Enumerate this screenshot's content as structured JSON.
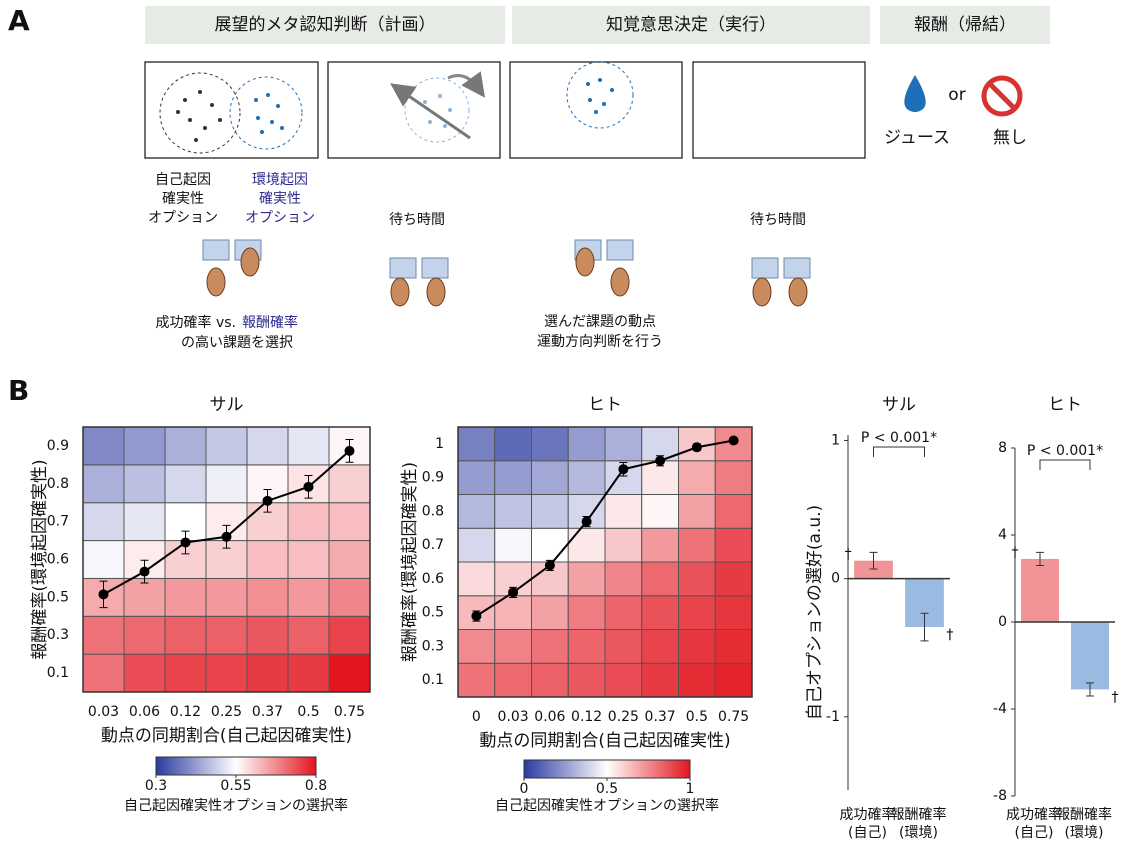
{
  "panel_a": {
    "label": "A",
    "headers": [
      "展望的メタ認知判断（計画）",
      "知覚意思決定（実行）",
      "報酬（帰結）"
    ],
    "self_option": [
      "自己起因",
      "確実性",
      "オプション"
    ],
    "env_option": [
      "環境起因",
      "確実性",
      "オプション"
    ],
    "wait": [
      "待ち時間",
      "待ち時間"
    ],
    "choose": [
      "成功確率 vs.",
      "報酬確率",
      "の高い課題を選択"
    ],
    "execute": [
      "選んだ課題の動点",
      "運動方向判断を行う"
    ],
    "juice": "ジュース",
    "or": "or",
    "none": "無し"
  },
  "panel_b_label": "B",
  "chart_data": [
    {
      "type": "heatmap",
      "title": "サル",
      "x_label": "動点の同期割合(自己起因確実性)",
      "y_label": "報酬確率(環境起因確実性)",
      "x_categories": [
        "0.03",
        "0.06",
        "0.12",
        "0.25",
        "0.37",
        "0.5",
        "0.75"
      ],
      "y_categories": [
        "0.1",
        "0.3",
        "0.5",
        "0.6",
        "0.7",
        "0.8",
        "0.9"
      ],
      "z": [
        [
          0.7,
          0.74,
          0.75,
          0.75,
          0.76,
          0.76,
          0.8
        ],
        [
          0.7,
          0.71,
          0.72,
          0.72,
          0.73,
          0.72,
          0.75
        ],
        [
          0.64,
          0.65,
          0.66,
          0.66,
          0.67,
          0.66,
          0.68
        ],
        [
          0.54,
          0.57,
          0.6,
          0.6,
          0.62,
          0.62,
          0.64
        ],
        [
          0.5,
          0.52,
          0.55,
          0.57,
          0.6,
          0.62,
          0.62
        ],
        [
          0.45,
          0.47,
          0.5,
          0.53,
          0.56,
          0.58,
          0.6
        ],
        [
          0.4,
          0.42,
          0.45,
          0.48,
          0.5,
          0.52,
          0.56
        ]
      ],
      "zlim": [
        0.3,
        0.8
      ],
      "colors": [
        "#2b3aa0",
        "#ffffff",
        "#e3151f"
      ],
      "colorbar_ticks": [
        0.3,
        0.55,
        0.8
      ],
      "colorbar_label": "自己起因確実性オプションの選択率",
      "line": {
        "values": [
          2.08,
          2.68,
          3.45,
          3.6,
          4.55,
          4.92,
          5.87
        ],
        "errors": [
          0.35,
          0.3,
          0.3,
          0.3,
          0.3,
          0.3,
          0.3
        ],
        "color": "#000000"
      }
    },
    {
      "type": "heatmap",
      "title": "ヒト",
      "x_label": "動点の同期割合(自己起因確実性)",
      "y_label": "報酬確率(環境起因確実性)",
      "x_categories": [
        "0",
        "0.03",
        "0.06",
        "0.12",
        "0.25",
        "0.37",
        "0.5",
        "0.75"
      ],
      "y_categories": [
        "0.1",
        "0.3",
        "0.5",
        "0.6",
        "0.7",
        "0.8",
        "0.9",
        "1"
      ],
      "z": [
        [
          0.8,
          0.82,
          0.84,
          0.86,
          0.88,
          0.92,
          0.95,
          0.97
        ],
        [
          0.75,
          0.77,
          0.8,
          0.83,
          0.86,
          0.9,
          0.93,
          0.95
        ],
        [
          0.65,
          0.66,
          0.7,
          0.78,
          0.83,
          0.87,
          0.9,
          0.93
        ],
        [
          0.58,
          0.6,
          0.62,
          0.7,
          0.76,
          0.82,
          0.87,
          0.92
        ],
        [
          0.4,
          0.48,
          0.5,
          0.55,
          0.62,
          0.72,
          0.8,
          0.88
        ],
        [
          0.32,
          0.35,
          0.36,
          0.4,
          0.55,
          0.52,
          0.7,
          0.82
        ],
        [
          0.25,
          0.25,
          0.28,
          0.32,
          0.4,
          0.55,
          0.68,
          0.78
        ],
        [
          0.18,
          0.12,
          0.15,
          0.25,
          0.3,
          0.4,
          0.62,
          0.75
        ]
      ],
      "zlim": [
        0,
        1
      ],
      "colors": [
        "#2b3aa0",
        "#ffffff",
        "#e3151f"
      ],
      "colorbar_ticks": [
        0,
        0.5,
        1
      ],
      "colorbar_label": "自己起因確実性オプションの選択率",
      "line": {
        "values": [
          1.9,
          2.6,
          3.4,
          4.7,
          6.25,
          6.5,
          6.9,
          7.1
        ],
        "errors": [
          0.15,
          0.15,
          0.15,
          0.15,
          0.2,
          0.15,
          0.1,
          0.05
        ],
        "color": "#000000"
      }
    },
    {
      "type": "bar",
      "title": "サル",
      "y_label": "自己オプションの選好(a.u.)",
      "categories": [
        [
          "成功確率",
          "(自己)"
        ],
        [
          "報酬確率",
          "(環境)"
        ]
      ],
      "values": [
        0.13,
        -0.35
      ],
      "errors": [
        0.06,
        0.1
      ],
      "colors": [
        "#f0888c",
        "#8fb3de"
      ],
      "ylim": [
        -1.53,
        1.04
      ],
      "yticks": [
        1,
        0,
        -1
      ],
      "annotation": "P < 0.001*",
      "markers": [
        "†",
        "†"
      ]
    },
    {
      "type": "bar",
      "title": "ヒト",
      "categories": [
        [
          "成功確率",
          "(自己)"
        ],
        [
          "報酬確率",
          "(環境)"
        ]
      ],
      "values": [
        2.9,
        -3.1
      ],
      "errors": [
        0.3,
        0.3
      ],
      "colors": [
        "#f0888c",
        "#8fb3de"
      ],
      "ylim": [
        -8,
        8
      ],
      "yticks": [
        8,
        4,
        0,
        -4,
        -8
      ],
      "annotation": "P < 0.001*",
      "markers": [
        "†",
        "†"
      ]
    }
  ]
}
